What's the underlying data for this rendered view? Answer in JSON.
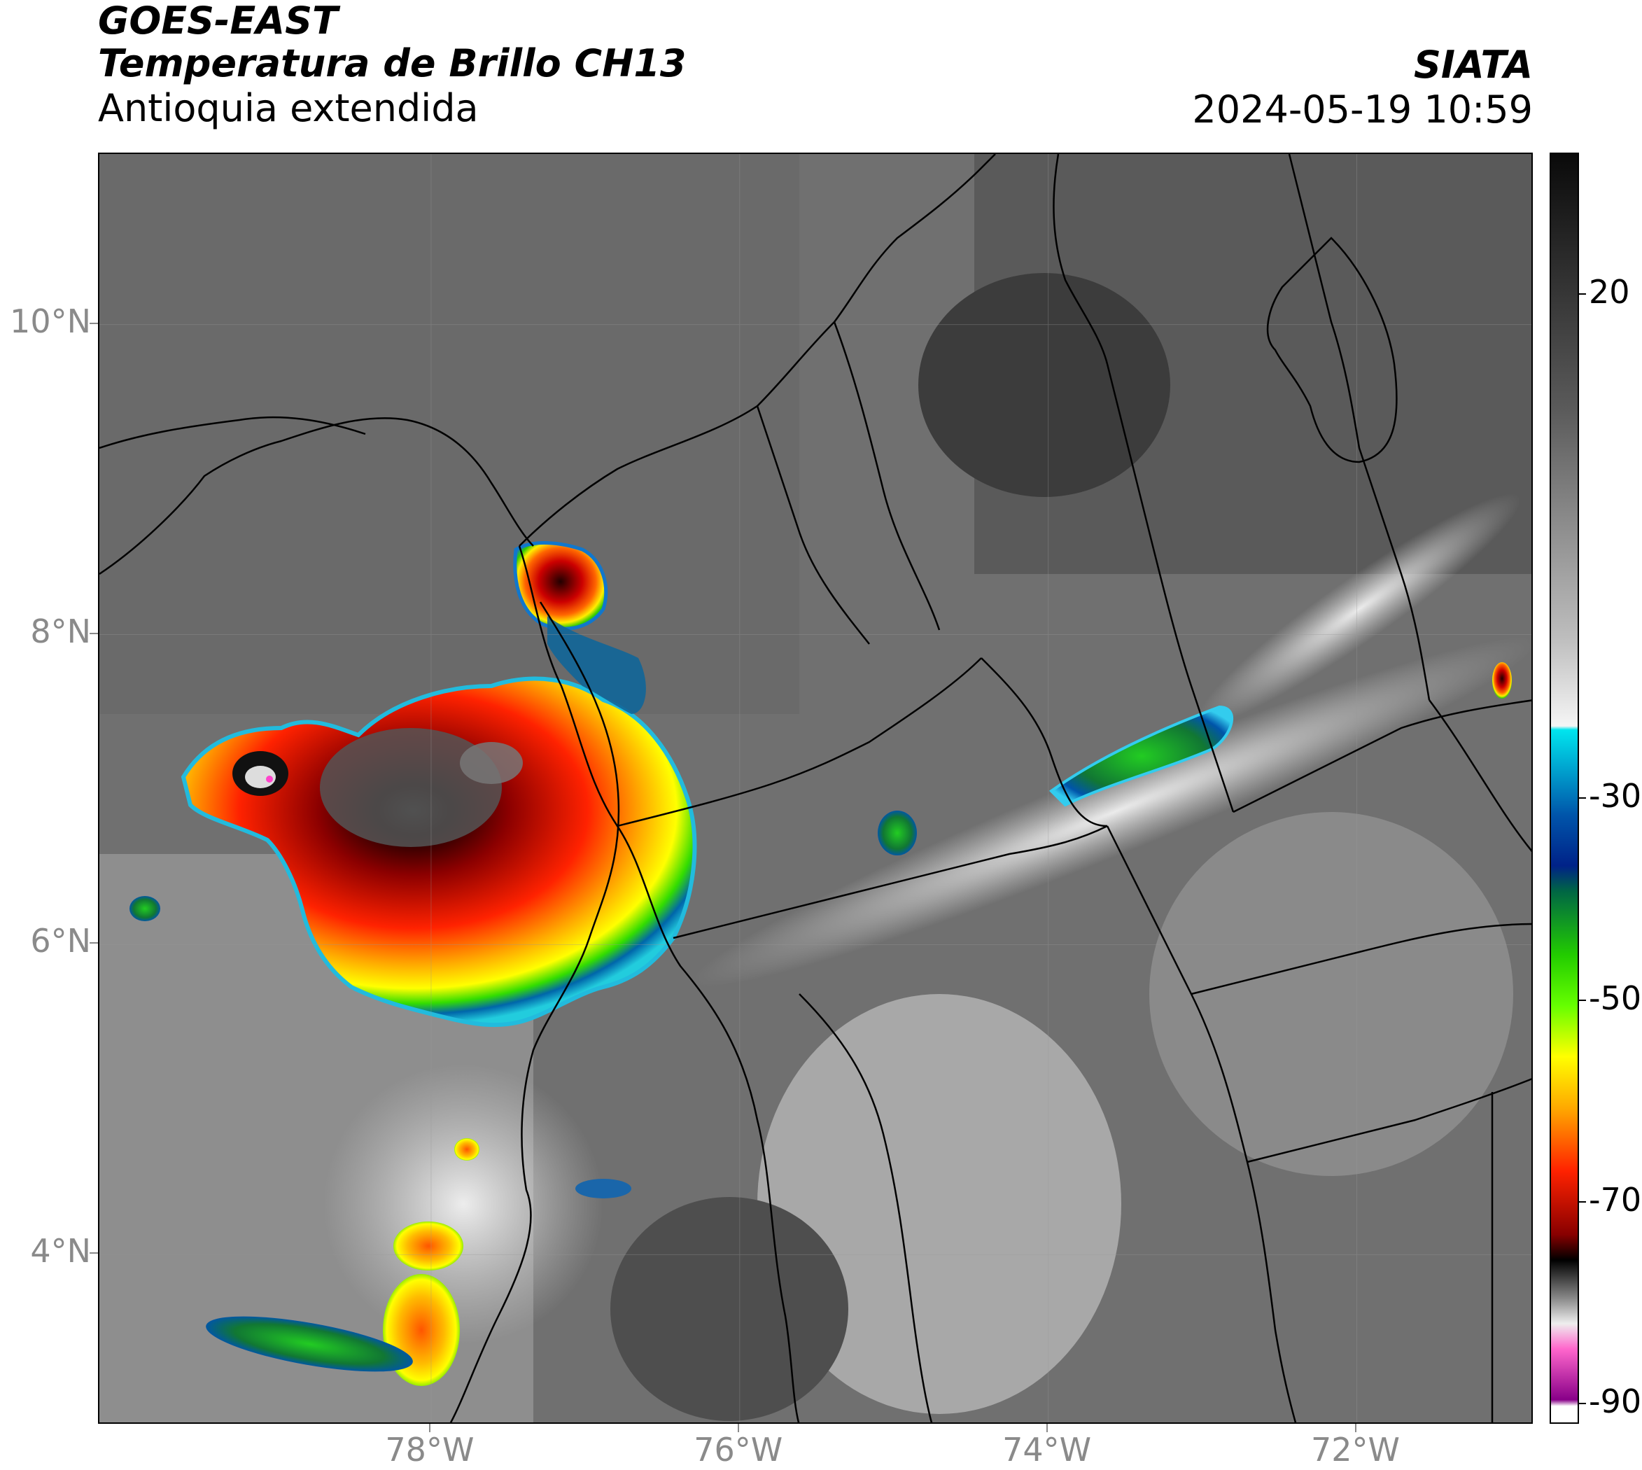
{
  "header": {
    "satellite": "GOES-EAST",
    "product": "Temperatura de Brillo CH13",
    "region": "Antioquia extendida",
    "agency": "SIATA",
    "datetime": "2024-05-19 10:59"
  },
  "map": {
    "lat_ticks": [
      "10°N",
      "8°N",
      "6°N",
      "4°N"
    ],
    "lon_ticks": [
      "78°W",
      "76°W",
      "74°W",
      "72°W"
    ],
    "lat_range": [
      2.9,
      11.1
    ],
    "lon_range": [
      -80.15,
      -70.85
    ],
    "lat_values": [
      10,
      8,
      6,
      4
    ],
    "lon_values": [
      -78,
      -76,
      -74,
      -72
    ]
  },
  "colorbar": {
    "labels": [
      "20",
      "-30",
      "-50",
      "-70",
      "-90"
    ],
    "values": [
      20,
      -30,
      -50,
      -70,
      -90
    ],
    "range": [
      -92,
      34
    ]
  }
}
